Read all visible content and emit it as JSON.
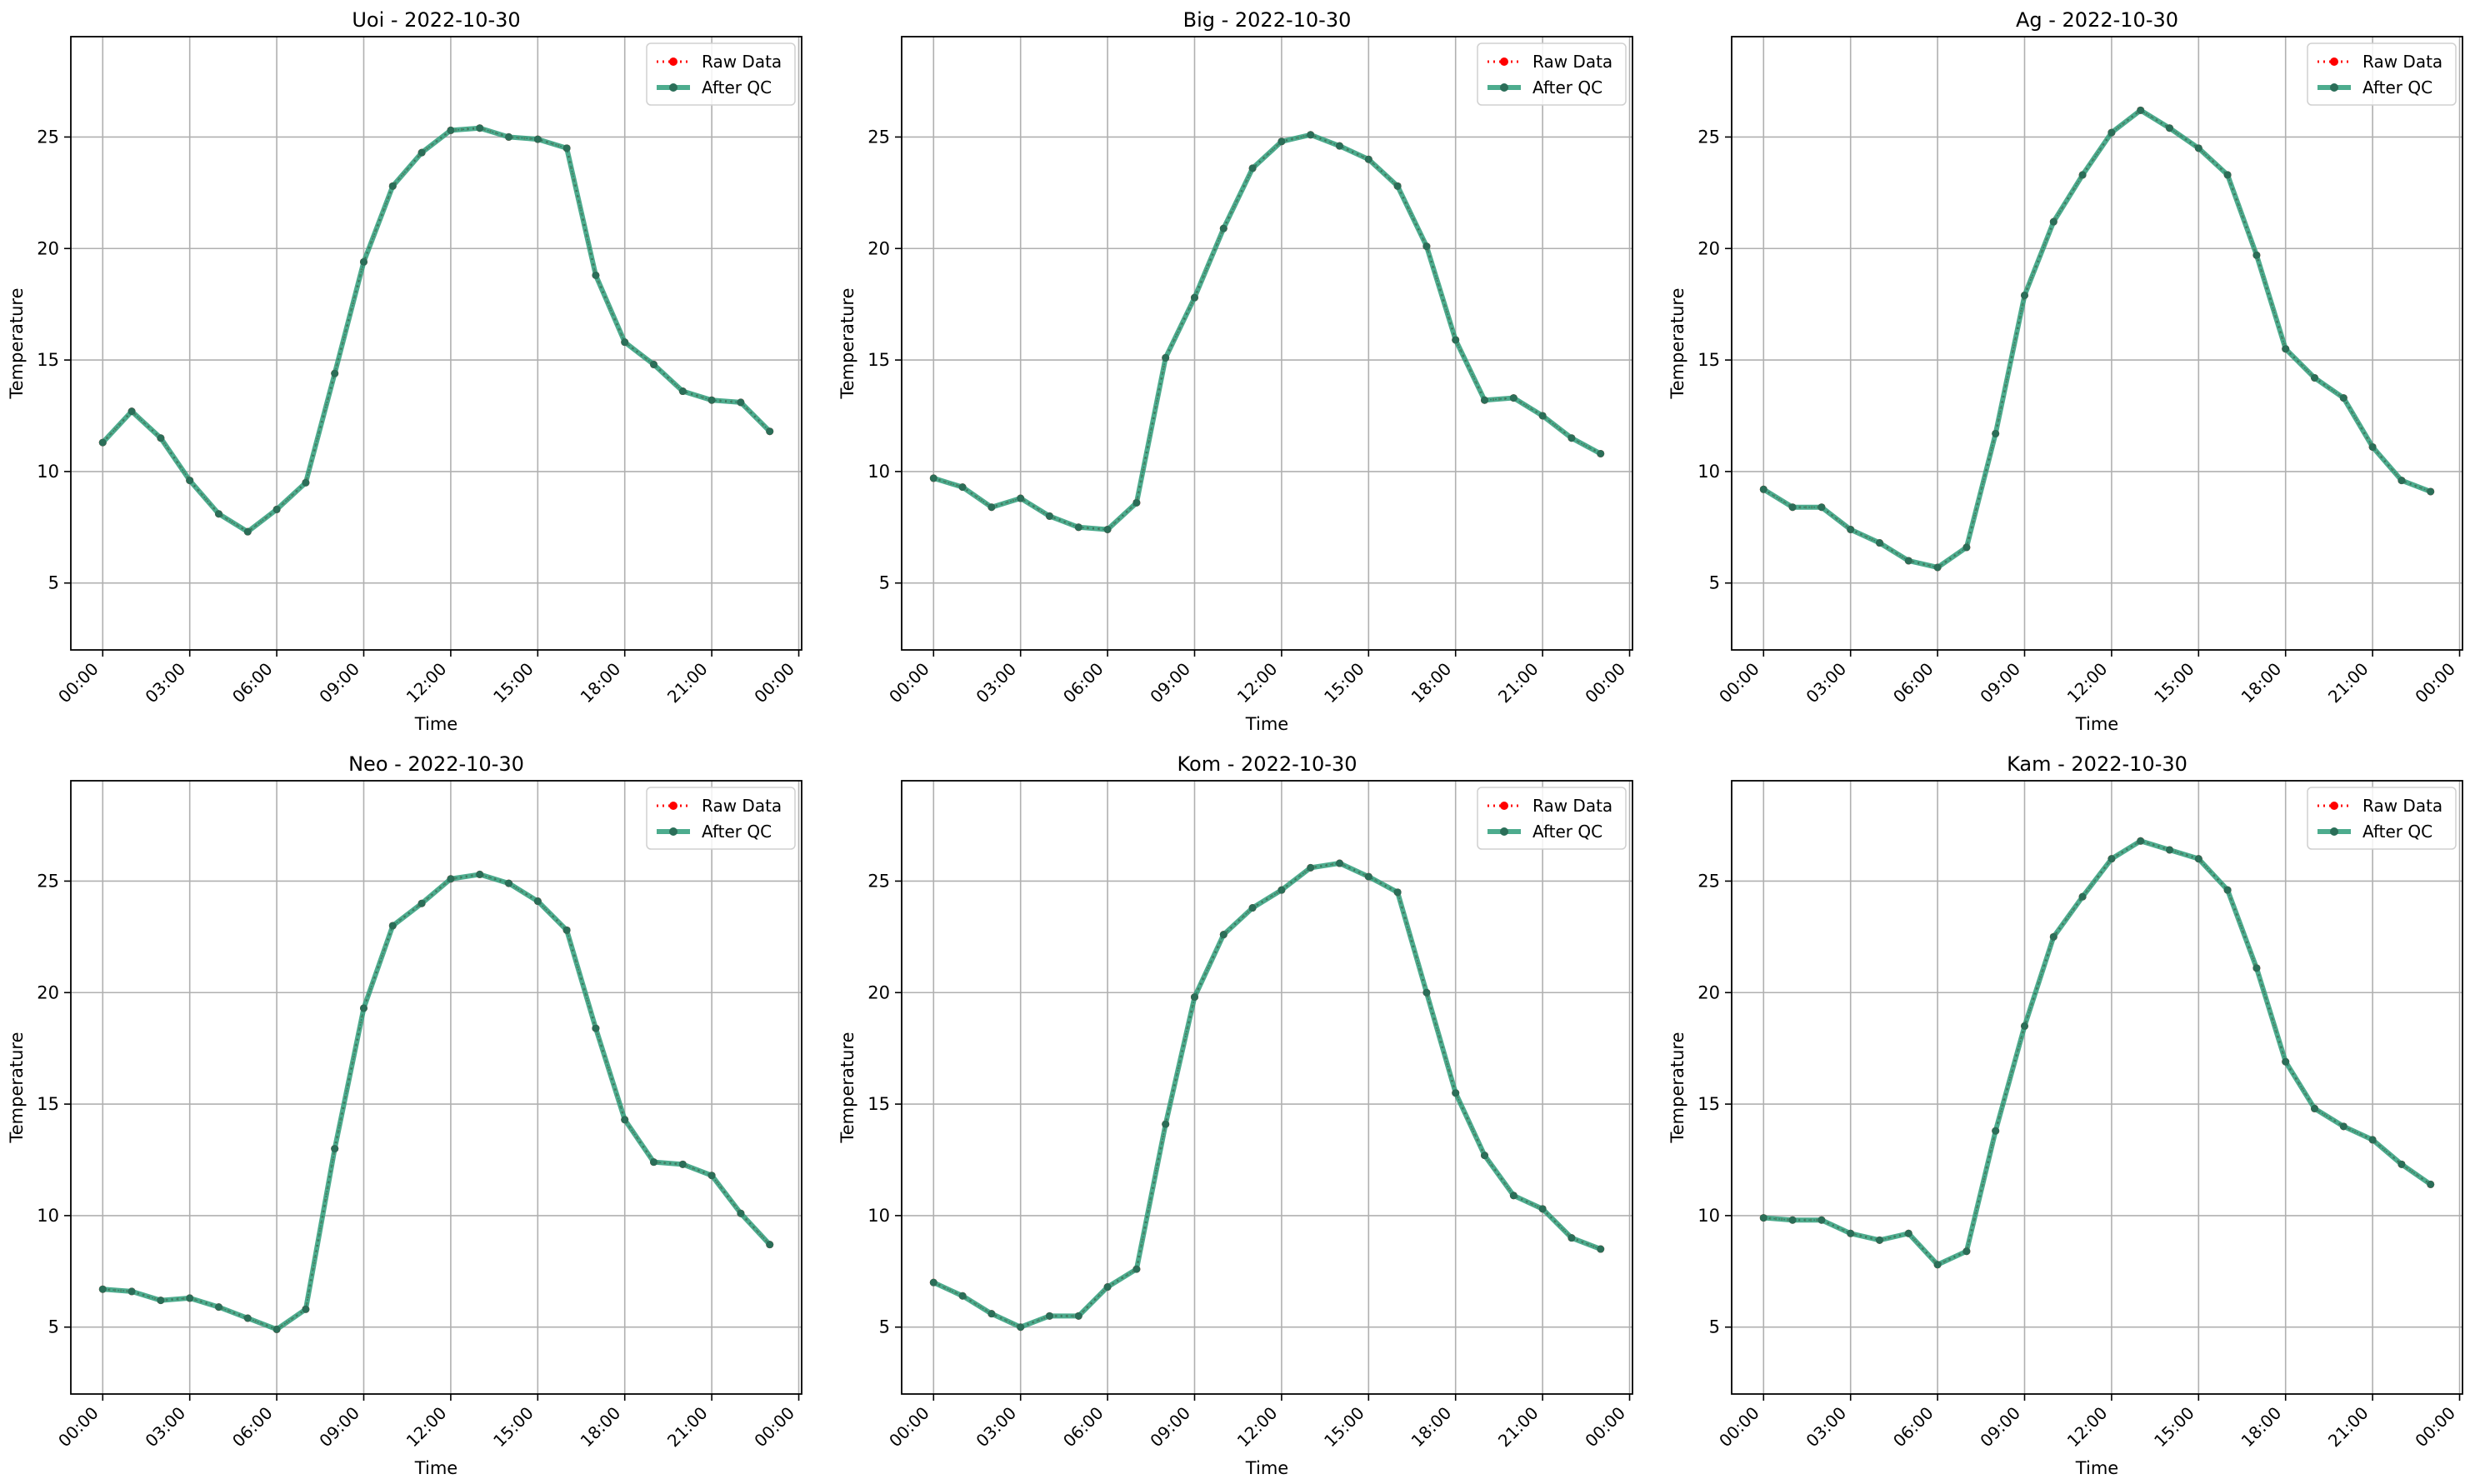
{
  "figure": {
    "legend": {
      "raw_label": "Raw Data",
      "qc_label": "After QC",
      "placement": "upper-right"
    },
    "x_tick_labels": [
      "00:00",
      "03:00",
      "06:00",
      "09:00",
      "12:00",
      "15:00",
      "18:00",
      "21:00",
      "00:00"
    ],
    "y_tick_labels": [
      "5",
      "10",
      "15",
      "20",
      "25"
    ],
    "xlabel": "Time",
    "ylabel": "Temperature",
    "colors": {
      "raw": "#ff0000",
      "qc": "#2e9e7a",
      "qc_marker": "#2b6e58",
      "grid": "#b0b0b0",
      "axes": "#000000"
    }
  },
  "chart_data": [
    {
      "type": "line",
      "title": "Uoi - 2022-10-30",
      "xlabel": "Time",
      "ylabel": "Temperature",
      "ylim": [
        2,
        29.5
      ],
      "x_range_hours": [
        -1.1,
        24.1
      ],
      "grid": true,
      "series": [
        {
          "name": "Raw Data",
          "style": "dotted red with markers",
          "x_hours": [
            0,
            1,
            2,
            3,
            4,
            5,
            6,
            7,
            8,
            9,
            10,
            11,
            12,
            13,
            14,
            15,
            16,
            17,
            18,
            19,
            20,
            21,
            22,
            23
          ],
          "values": [
            11.3,
            12.7,
            11.5,
            9.6,
            8.1,
            7.3,
            8.3,
            9.5,
            14.4,
            19.4,
            22.8,
            24.3,
            25.3,
            25.4,
            25.0,
            24.9,
            24.5,
            18.8,
            15.8,
            14.8,
            13.6,
            13.2,
            13.1,
            11.8
          ]
        },
        {
          "name": "After QC",
          "style": "solid green with markers",
          "x_hours": [
            0,
            1,
            2,
            3,
            4,
            5,
            6,
            7,
            8,
            9,
            10,
            11,
            12,
            13,
            14,
            15,
            16,
            17,
            18,
            19,
            20,
            21,
            22,
            23
          ],
          "values": [
            11.3,
            12.7,
            11.5,
            9.6,
            8.1,
            7.3,
            8.3,
            9.5,
            14.4,
            19.4,
            22.8,
            24.3,
            25.3,
            25.4,
            25.0,
            24.9,
            24.5,
            18.8,
            15.8,
            14.8,
            13.6,
            13.2,
            13.1,
            11.8
          ]
        }
      ]
    },
    {
      "type": "line",
      "title": "Big - 2022-10-30",
      "xlabel": "Time",
      "ylabel": "Temperature",
      "ylim": [
        2,
        29.5
      ],
      "x_range_hours": [
        -1.1,
        24.1
      ],
      "grid": true,
      "series": [
        {
          "name": "Raw Data",
          "style": "dotted red with markers",
          "x_hours": [
            0,
            1,
            2,
            3,
            4,
            5,
            6,
            7,
            8,
            9,
            10,
            11,
            12,
            13,
            14,
            15,
            16,
            17,
            18,
            19,
            20,
            21,
            22,
            23
          ],
          "values": [
            9.7,
            9.3,
            8.4,
            8.8,
            8.0,
            7.5,
            7.4,
            8.6,
            15.1,
            17.8,
            20.9,
            23.6,
            24.8,
            25.1,
            24.6,
            24.0,
            22.8,
            20.1,
            15.9,
            13.2,
            13.3,
            12.5,
            11.5,
            10.8
          ]
        },
        {
          "name": "After QC",
          "style": "solid green with markers",
          "x_hours": [
            0,
            1,
            2,
            3,
            4,
            5,
            6,
            7,
            8,
            9,
            10,
            11,
            12,
            13,
            14,
            15,
            16,
            17,
            18,
            19,
            20,
            21,
            22,
            23
          ],
          "values": [
            9.7,
            9.3,
            8.4,
            8.8,
            8.0,
            7.5,
            7.4,
            8.6,
            15.1,
            17.8,
            20.9,
            23.6,
            24.8,
            25.1,
            24.6,
            24.0,
            22.8,
            20.1,
            15.9,
            13.2,
            13.3,
            12.5,
            11.5,
            10.8
          ]
        }
      ]
    },
    {
      "type": "line",
      "title": "Ag - 2022-10-30",
      "xlabel": "Time",
      "ylabel": "Temperature",
      "ylim": [
        2,
        29.5
      ],
      "x_range_hours": [
        -1.1,
        24.1
      ],
      "grid": true,
      "series": [
        {
          "name": "Raw Data",
          "style": "dotted red with markers",
          "x_hours": [
            0,
            1,
            2,
            3,
            4,
            5,
            6,
            7,
            8,
            9,
            10,
            11,
            12,
            13,
            14,
            15,
            16,
            17,
            18,
            19,
            20,
            21,
            22,
            23
          ],
          "values": [
            9.2,
            8.4,
            8.4,
            7.4,
            6.8,
            6.0,
            5.7,
            6.6,
            11.7,
            17.9,
            21.2,
            23.3,
            25.2,
            26.2,
            25.4,
            24.5,
            23.3,
            19.7,
            15.5,
            14.2,
            13.3,
            11.1,
            9.6,
            9.1
          ]
        },
        {
          "name": "After QC",
          "style": "solid green with markers",
          "x_hours": [
            0,
            1,
            2,
            3,
            4,
            5,
            6,
            7,
            8,
            9,
            10,
            11,
            12,
            13,
            14,
            15,
            16,
            17,
            18,
            19,
            20,
            21,
            22,
            23
          ],
          "values": [
            9.2,
            8.4,
            8.4,
            7.4,
            6.8,
            6.0,
            5.7,
            6.6,
            11.7,
            17.9,
            21.2,
            23.3,
            25.2,
            26.2,
            25.4,
            24.5,
            23.3,
            19.7,
            15.5,
            14.2,
            13.3,
            11.1,
            9.6,
            9.1
          ]
        }
      ]
    },
    {
      "type": "line",
      "title": "Neo - 2022-10-30",
      "xlabel": "Time",
      "ylabel": "Temperature",
      "ylim": [
        2,
        29.5
      ],
      "x_range_hours": [
        -1.1,
        24.1
      ],
      "grid": true,
      "series": [
        {
          "name": "Raw Data",
          "style": "dotted red with markers",
          "x_hours": [
            0,
            1,
            2,
            3,
            4,
            5,
            6,
            7,
            8,
            9,
            10,
            11,
            12,
            13,
            14,
            15,
            16,
            17,
            18,
            19,
            20,
            21,
            22,
            23
          ],
          "values": [
            6.7,
            6.6,
            6.2,
            6.3,
            5.9,
            5.4,
            4.9,
            5.8,
            13.0,
            19.3,
            23.0,
            24.0,
            25.1,
            25.3,
            24.9,
            24.1,
            22.8,
            18.4,
            14.3,
            12.4,
            12.3,
            11.8,
            10.1,
            8.7
          ]
        },
        {
          "name": "After QC",
          "style": "solid green with markers",
          "x_hours": [
            0,
            1,
            2,
            3,
            4,
            5,
            6,
            7,
            8,
            9,
            10,
            11,
            12,
            13,
            14,
            15,
            16,
            17,
            18,
            19,
            20,
            21,
            22,
            23
          ],
          "values": [
            6.7,
            6.6,
            6.2,
            6.3,
            5.9,
            5.4,
            4.9,
            5.8,
            13.0,
            19.3,
            23.0,
            24.0,
            25.1,
            25.3,
            24.9,
            24.1,
            22.8,
            18.4,
            14.3,
            12.4,
            12.3,
            11.8,
            10.1,
            8.7
          ]
        }
      ]
    },
    {
      "type": "line",
      "title": "Kom - 2022-10-30",
      "xlabel": "Time",
      "ylabel": "Temperature",
      "ylim": [
        2,
        29.5
      ],
      "x_range_hours": [
        -1.1,
        24.1
      ],
      "grid": true,
      "series": [
        {
          "name": "Raw Data",
          "style": "dotted red with markers",
          "x_hours": [
            0,
            1,
            2,
            3,
            4,
            5,
            6,
            7,
            8,
            9,
            10,
            11,
            12,
            13,
            14,
            15,
            16,
            17,
            18,
            19,
            20,
            21,
            22,
            23
          ],
          "values": [
            7.0,
            6.4,
            5.6,
            5.0,
            5.5,
            5.5,
            6.8,
            7.6,
            14.1,
            19.8,
            22.6,
            23.8,
            24.6,
            25.6,
            25.8,
            25.2,
            24.5,
            20.0,
            15.5,
            12.7,
            10.9,
            10.3,
            9.0,
            8.5
          ]
        },
        {
          "name": "After QC",
          "style": "solid green with markers",
          "x_hours": [
            0,
            1,
            2,
            3,
            4,
            5,
            6,
            7,
            8,
            9,
            10,
            11,
            12,
            13,
            14,
            15,
            16,
            17,
            18,
            19,
            20,
            21,
            22,
            23
          ],
          "values": [
            7.0,
            6.4,
            5.6,
            5.0,
            5.5,
            5.5,
            6.8,
            7.6,
            14.1,
            19.8,
            22.6,
            23.8,
            24.6,
            25.6,
            25.8,
            25.2,
            24.5,
            20.0,
            15.5,
            12.7,
            10.9,
            10.3,
            9.0,
            8.5
          ]
        }
      ]
    },
    {
      "type": "line",
      "title": "Kam - 2022-10-30",
      "xlabel": "Time",
      "ylabel": "Temperature",
      "ylim": [
        2,
        29.5
      ],
      "x_range_hours": [
        -1.1,
        24.1
      ],
      "grid": true,
      "series": [
        {
          "name": "Raw Data",
          "style": "dotted red with markers",
          "x_hours": [
            0,
            1,
            2,
            3,
            4,
            5,
            6,
            7,
            8,
            9,
            10,
            11,
            12,
            13,
            14,
            15,
            16,
            17,
            18,
            19,
            20,
            21,
            22,
            23
          ],
          "values": [
            9.9,
            9.8,
            9.8,
            9.2,
            8.9,
            9.2,
            7.8,
            8.4,
            13.8,
            18.5,
            22.5,
            24.3,
            26.0,
            26.8,
            26.4,
            26.0,
            24.6,
            21.1,
            16.9,
            14.8,
            14.0,
            13.4,
            12.3,
            11.4
          ]
        },
        {
          "name": "After QC",
          "style": "solid green with markers",
          "x_hours": [
            0,
            1,
            2,
            3,
            4,
            5,
            6,
            7,
            8,
            9,
            10,
            11,
            12,
            13,
            14,
            15,
            16,
            17,
            18,
            19,
            20,
            21,
            22,
            23
          ],
          "values": [
            9.9,
            9.8,
            9.8,
            9.2,
            8.9,
            9.2,
            7.8,
            8.4,
            13.8,
            18.5,
            22.5,
            24.3,
            26.0,
            26.8,
            26.4,
            26.0,
            24.6,
            21.1,
            16.9,
            14.8,
            14.0,
            13.4,
            12.3,
            11.4
          ]
        }
      ]
    }
  ]
}
